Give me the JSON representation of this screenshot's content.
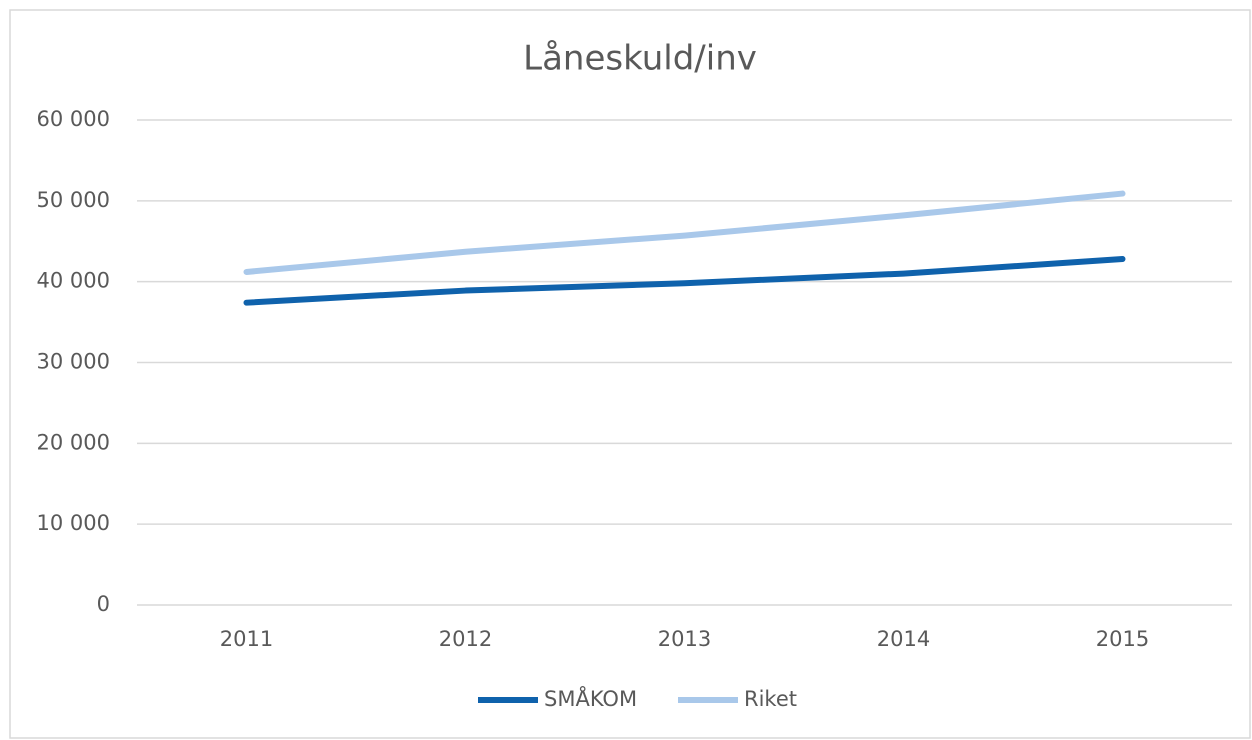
{
  "chart_data": {
    "type": "line",
    "title": "Låneskuld/inv",
    "categories": [
      "2011",
      "2012",
      "2013",
      "2014",
      "2015"
    ],
    "series": [
      {
        "name": "SMÅKOM",
        "color": "#0f62ac",
        "values": [
          37400,
          38900,
          39800,
          41000,
          42800
        ]
      },
      {
        "name": "Riket",
        "color": "#a9c8ea",
        "values": [
          41200,
          43700,
          45700,
          48200,
          50900
        ]
      }
    ],
    "ylim": [
      0,
      60000
    ],
    "yticks": [
      0,
      {
        "value": 10000,
        "label": "10 000"
      },
      {
        "value": 20000,
        "label": "20 000"
      },
      {
        "value": 30000,
        "label": "30 000"
      },
      {
        "value": 40000,
        "label": "40 000"
      },
      {
        "value": 50000,
        "label": "50 000"
      },
      {
        "value": 60000,
        "label": "60 000"
      }
    ],
    "grid": true,
    "legend": "bottom"
  }
}
